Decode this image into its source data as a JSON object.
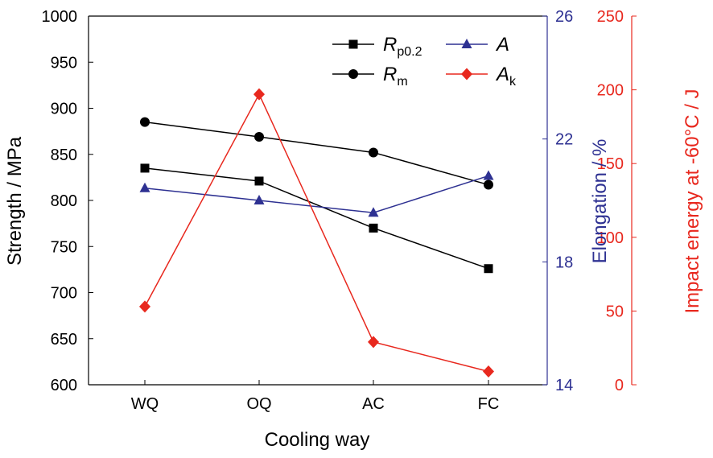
{
  "chart_data": {
    "type": "line",
    "categories": [
      "WQ",
      "OQ",
      "AC",
      "FC"
    ],
    "xlabel": "Cooling way",
    "axes": {
      "left": {
        "label": "Strength / MPa",
        "range": [
          600,
          1000
        ],
        "ticks": [
          600,
          650,
          700,
          750,
          800,
          850,
          900,
          950,
          1000
        ],
        "color": "#000000"
      },
      "right1": {
        "label": "Elongation / %",
        "range": [
          14,
          26
        ],
        "ticks": [
          14,
          18,
          22,
          26
        ],
        "color": "#2e3192"
      },
      "right2": {
        "label": "Impact energy at -60°C / J",
        "range": [
          0,
          250
        ],
        "ticks": [
          0,
          50,
          100,
          150,
          200,
          250
        ],
        "color": "#e8281e"
      }
    },
    "series": [
      {
        "name_main": "R",
        "name_sub": "p0.2",
        "axis": "left",
        "color": "#000000",
        "marker": "square",
        "values": [
          835,
          821,
          770,
          726
        ]
      },
      {
        "name_main": "R",
        "name_sub": "m",
        "axis": "left",
        "color": "#000000",
        "marker": "circle",
        "values": [
          885,
          869,
          852,
          817
        ]
      },
      {
        "name_main": "A",
        "name_sub": "",
        "axis": "right1",
        "color": "#2e3192",
        "marker": "triangle",
        "values": [
          20.4,
          20.0,
          19.6,
          20.8
        ]
      },
      {
        "name_main": "A",
        "name_sub": "k",
        "axis": "right2",
        "color": "#e8281e",
        "marker": "diamond",
        "values": [
          53,
          197,
          29,
          9
        ]
      }
    ],
    "legend_position": "top-right"
  }
}
